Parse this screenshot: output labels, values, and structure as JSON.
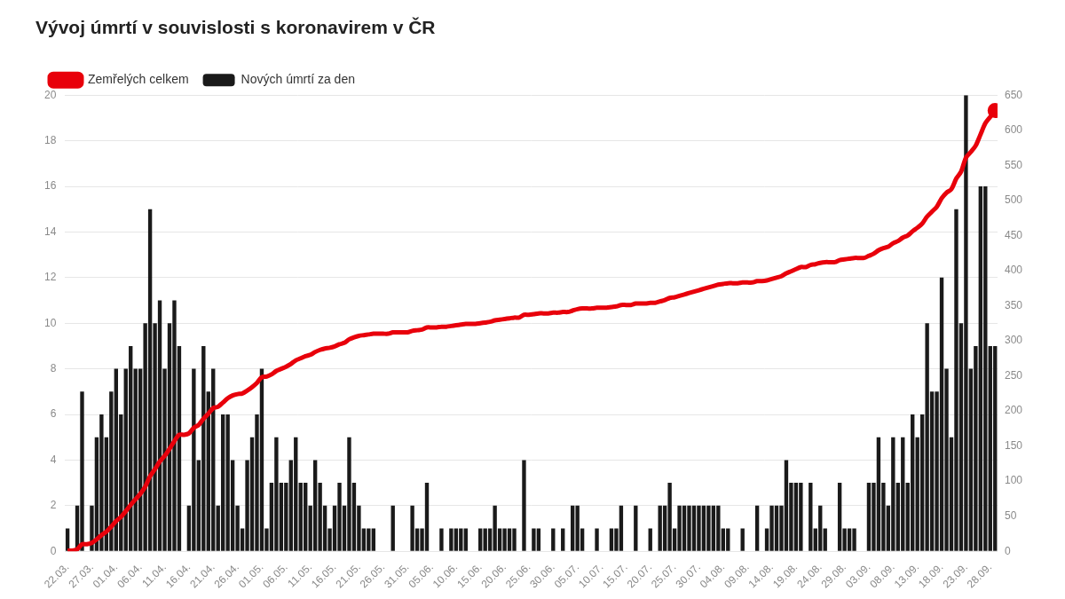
{
  "chart_data": {
    "type": "bar",
    "title": "Vývoj úmrtí v souvislosti s koronavirem v ČR",
    "categories": [
      "22.03.",
      null,
      null,
      null,
      null,
      "27.03.",
      null,
      null,
      null,
      null,
      "01.04.",
      null,
      null,
      null,
      null,
      "06.04.",
      null,
      null,
      null,
      null,
      "11.04.",
      null,
      null,
      null,
      null,
      "16.04.",
      null,
      null,
      null,
      null,
      "21.04.",
      null,
      null,
      null,
      null,
      "26.04.",
      null,
      null,
      null,
      null,
      "01.05.",
      null,
      null,
      null,
      null,
      "06.05.",
      null,
      null,
      null,
      null,
      "11.05.",
      null,
      null,
      null,
      null,
      "16.05.",
      null,
      null,
      null,
      null,
      "21.05.",
      null,
      null,
      null,
      null,
      "26.05.",
      null,
      null,
      null,
      null,
      "31.05.",
      null,
      null,
      null,
      null,
      "05.06.",
      null,
      null,
      null,
      null,
      "10.06.",
      null,
      null,
      null,
      null,
      "15.06.",
      null,
      null,
      null,
      null,
      "20.06.",
      null,
      null,
      null,
      null,
      "25.06.",
      null,
      null,
      null,
      null,
      "30.06.",
      null,
      null,
      null,
      null,
      "05.07.",
      null,
      null,
      null,
      null,
      "10.07.",
      null,
      null,
      null,
      null,
      "15.07.",
      null,
      null,
      null,
      null,
      "20.07.",
      null,
      null,
      null,
      null,
      "25.07.",
      null,
      null,
      null,
      null,
      "30.07.",
      null,
      null,
      null,
      null,
      "04.08.",
      null,
      null,
      null,
      null,
      "09.08.",
      null,
      null,
      null,
      null,
      "14.08.",
      null,
      null,
      null,
      null,
      "19.08.",
      null,
      null,
      null,
      null,
      "24.08.",
      null,
      null,
      null,
      null,
      "29.08.",
      null,
      null,
      null,
      null,
      "03.09.",
      null,
      null,
      null,
      null,
      "08.09.",
      null,
      null,
      null,
      null,
      "13.09.",
      null,
      null,
      null,
      null,
      "18.09.",
      null,
      null,
      null,
      null,
      "23.09.",
      null,
      null,
      null,
      null,
      "28.09.",
      null
    ],
    "series": [
      {
        "name": "Zemřelých celkem",
        "type": "line",
        "axis": "y2",
        "color": "#e8000b",
        "marker": "end",
        "values": [
          1,
          1,
          3,
          10,
          10,
          12,
          17,
          23,
          28,
          35,
          43,
          49,
          57,
          66,
          74,
          82,
          92,
          107,
          117,
          128,
          136,
          146,
          157,
          166,
          166,
          168,
          176,
          180,
          189,
          196,
          204,
          206,
          212,
          218,
          222,
          224,
          225,
          229,
          234,
          240,
          248,
          249,
          252,
          257,
          260,
          263,
          267,
          272,
          275,
          278,
          280,
          284,
          287,
          289,
          290,
          292,
          295,
          297,
          302,
          305,
          307,
          308,
          309,
          310,
          310,
          310,
          310,
          312,
          312,
          312,
          312,
          314,
          315,
          316,
          319,
          319,
          319,
          320,
          320,
          321,
          322,
          323,
          324,
          324,
          324,
          325,
          326,
          327,
          329,
          330,
          331,
          332,
          333,
          333,
          337,
          337,
          338,
          339,
          339,
          339,
          340,
          340,
          341,
          341,
          343,
          345,
          346,
          346,
          346,
          347,
          347,
          347,
          348,
          349,
          351,
          351,
          351,
          353,
          353,
          353,
          354,
          354,
          356,
          358,
          361,
          362,
          364,
          366,
          368,
          370,
          372,
          374,
          376,
          378,
          380,
          381,
          382,
          382,
          382,
          383,
          383,
          383,
          385,
          385,
          386,
          388,
          390,
          392,
          396,
          399,
          402,
          405,
          405,
          408,
          409,
          411,
          412,
          412,
          412,
          415,
          416,
          417,
          418,
          418,
          418,
          421,
          424,
          429,
          432,
          434,
          439,
          442,
          447,
          450,
          456,
          461,
          467,
          477,
          484,
          491,
          503,
          511,
          516,
          531,
          541,
          561,
          569,
          578,
          594,
          610,
          619,
          628
        ]
      },
      {
        "name": "Nových úmrtí za den",
        "type": "bar",
        "color": "#1a1a1a",
        "values": [
          1,
          0,
          2,
          7,
          0,
          2,
          5,
          6,
          5,
          7,
          8,
          6,
          8,
          9,
          8,
          8,
          10,
          15,
          10,
          11,
          8,
          10,
          11,
          9,
          0,
          2,
          8,
          4,
          9,
          7,
          8,
          2,
          6,
          6,
          4,
          2,
          1,
          4,
          5,
          6,
          8,
          1,
          3,
          5,
          3,
          3,
          4,
          5,
          3,
          3,
          2,
          4,
          3,
          2,
          1,
          2,
          3,
          2,
          5,
          3,
          2,
          1,
          1,
          1,
          0,
          0,
          0,
          2,
          0,
          0,
          0,
          2,
          1,
          1,
          3,
          0,
          0,
          1,
          0,
          1,
          1,
          1,
          1,
          0,
          0,
          1,
          1,
          1,
          2,
          1,
          1,
          1,
          1,
          0,
          4,
          0,
          1,
          1,
          0,
          0,
          1,
          0,
          1,
          0,
          2,
          2,
          1,
          0,
          0,
          1,
          0,
          0,
          1,
          1,
          2,
          0,
          0,
          2,
          0,
          0,
          1,
          0,
          2,
          2,
          3,
          1,
          2,
          2,
          2,
          2,
          2,
          2,
          2,
          2,
          2,
          1,
          1,
          0,
          0,
          1,
          0,
          0,
          2,
          0,
          1,
          2,
          2,
          2,
          4,
          3,
          3,
          3,
          0,
          3,
          1,
          2,
          1,
          0,
          0,
          3,
          1,
          1,
          1,
          0,
          0,
          3,
          3,
          5,
          3,
          2,
          5,
          3,
          5,
          3,
          6,
          5,
          6,
          10,
          7,
          7,
          12,
          8,
          5,
          15,
          10,
          20,
          8,
          9,
          16,
          16,
          9,
          9
        ]
      }
    ],
    "ylim": [
      0,
      20
    ],
    "yticks": [
      0,
      2,
      4,
      6,
      8,
      10,
      12,
      14,
      16,
      18,
      20
    ],
    "y2lim": [
      0,
      650
    ],
    "y2ticks": [
      0,
      50,
      100,
      150,
      200,
      250,
      300,
      350,
      400,
      450,
      500,
      550,
      600,
      650
    ],
    "grid": true,
    "legend": "top-left"
  }
}
